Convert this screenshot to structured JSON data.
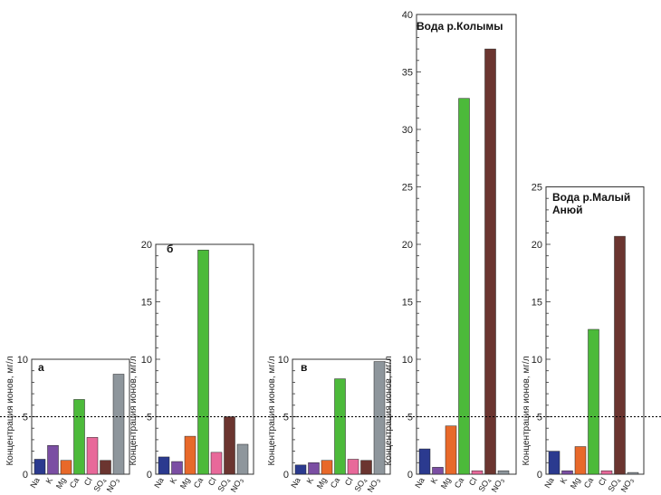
{
  "threshold": {
    "value": 5,
    "style": "dotted"
  },
  "colors": {
    "Na": "#2b3a8f",
    "K": "#7b4ea3",
    "Mg": "#e8692a",
    "Ca": "#4cba3a",
    "Cl": "#e8699a",
    "SO4": "#6b3530",
    "NO3": "#8e969c"
  },
  "ion_labels": {
    "Na": "Na",
    "K": "K",
    "Mg": "Mg",
    "Ca": "Ca",
    "Cl": "Cl",
    "SO4": "SO",
    "SO4_sub": "4",
    "NO3": "NO",
    "NO3_sub": "3"
  },
  "chart_data": [
    {
      "type": "bar",
      "title": "а",
      "ylabel": "Концентрация ионов, мг/л",
      "ylim": [
        0,
        10
      ],
      "yticks": [
        0,
        5,
        10
      ],
      "categories": [
        "Na",
        "K",
        "Mg",
        "Ca",
        "Cl",
        "SO4",
        "NO3"
      ],
      "values": [
        1.3,
        2.5,
        1.2,
        6.5,
        3.2,
        1.2,
        8.7
      ]
    },
    {
      "type": "bar",
      "title": "б",
      "ylabel": "Концентрация ионов, мг/л",
      "ylim": [
        0,
        20
      ],
      "yticks": [
        0,
        5,
        10,
        15,
        20
      ],
      "categories": [
        "Na",
        "K",
        "Mg",
        "Ca",
        "Cl",
        "SO4",
        "NO3"
      ],
      "values": [
        1.5,
        1.1,
        3.3,
        19.5,
        1.9,
        5.0,
        2.6
      ]
    },
    {
      "type": "bar",
      "title": "в",
      "ylabel": "Концентрация ионов, мг/л",
      "ylim": [
        0,
        10
      ],
      "yticks": [
        0,
        5,
        10
      ],
      "categories": [
        "Na",
        "K",
        "Mg",
        "Ca",
        "Cl",
        "SO4",
        "NO3"
      ],
      "values": [
        0.8,
        1.0,
        1.2,
        8.3,
        1.3,
        1.2,
        9.8
      ]
    },
    {
      "type": "bar",
      "title": "Вода р.Колымы",
      "ylabel": "Концентрация ионов, мг/л",
      "ylim": [
        0,
        40
      ],
      "yticks": [
        0,
        5,
        10,
        15,
        20,
        25,
        30,
        35,
        40
      ],
      "categories": [
        "Na",
        "K",
        "Mg",
        "Ca",
        "Cl",
        "SO4",
        "NO3"
      ],
      "values": [
        2.2,
        0.6,
        4.2,
        32.7,
        0.3,
        37.0,
        0.3
      ]
    },
    {
      "type": "bar",
      "title": "Вода р.Малый Анюй",
      "ylabel": "Концентрация ионов, мг/л",
      "ylim": [
        0,
        25
      ],
      "yticks": [
        0,
        5,
        10,
        15,
        20,
        25
      ],
      "categories": [
        "Na",
        "K",
        "Mg",
        "Ca",
        "Cl",
        "SO4",
        "NO3"
      ],
      "values": [
        2.0,
        0.3,
        2.4,
        12.6,
        0.3,
        20.7,
        0.15
      ]
    }
  ]
}
